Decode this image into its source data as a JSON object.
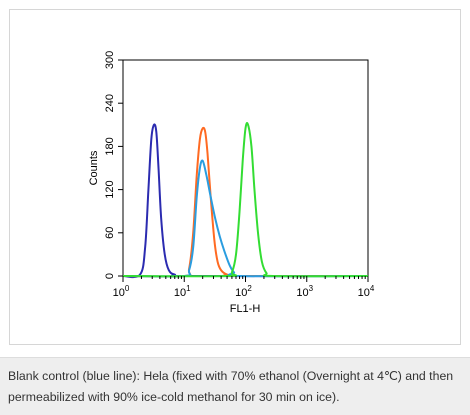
{
  "chart_data": {
    "type": "line",
    "title": "",
    "xlabel": "FL1-H",
    "ylabel": "Counts",
    "x_scale": "log",
    "xlim": [
      1,
      10000
    ],
    "ylim": [
      0,
      300
    ],
    "x_tick_values": [
      1,
      10,
      100,
      1000,
      10000
    ],
    "x_tick_bases": [
      "10",
      "10",
      "10",
      "10",
      "10"
    ],
    "x_tick_exponents": [
      "0",
      "1",
      "2",
      "3",
      "4"
    ],
    "y_ticks": [
      "0",
      "60",
      "120",
      "180",
      "240",
      "300"
    ],
    "grid": false,
    "legend": "none",
    "series": [
      {
        "color": "#2b2bb0",
        "x": [
          1,
          1.9,
          2.3,
          2.6,
          2.9,
          3.2,
          3.5,
          3.8,
          4.2,
          4.8,
          5.6,
          7,
          10,
          1000,
          10000
        ],
        "y": [
          0,
          2,
          40,
          120,
          190,
          210,
          200,
          150,
          80,
          30,
          8,
          2,
          0,
          0,
          0
        ]
      },
      {
        "color": "#ff6a22",
        "x": [
          1,
          10,
          12,
          14,
          16,
          18,
          20,
          22,
          24,
          27,
          31,
          35,
          40,
          50,
          70,
          10000
        ],
        "y": [
          0,
          0,
          10,
          60,
          140,
          190,
          205,
          200,
          170,
          110,
          50,
          20,
          8,
          2,
          0,
          0
        ]
      },
      {
        "color": "#2a9de0",
        "x": [
          1,
          10,
          12,
          14,
          16,
          18,
          20,
          23,
          27,
          32,
          38,
          45,
          55,
          65,
          80,
          10000
        ],
        "y": [
          0,
          0,
          8,
          40,
          110,
          150,
          160,
          140,
          110,
          80,
          55,
          35,
          15,
          5,
          0,
          0
        ]
      },
      {
        "color": "#33dd33",
        "x": [
          1,
          50,
          60,
          70,
          80,
          90,
          100,
          110,
          125,
          140,
          160,
          185,
          220,
          280,
          10000
        ],
        "y": [
          0,
          0,
          5,
          30,
          90,
          160,
          205,
          210,
          180,
          120,
          60,
          20,
          4,
          0,
          0
        ]
      }
    ]
  },
  "caption": "Blank control (blue line): Hela (fixed with 70% ethanol (Overnight at 4℃) and then permeabilized with 90% ice-cold methanol for 30 min on ice)."
}
